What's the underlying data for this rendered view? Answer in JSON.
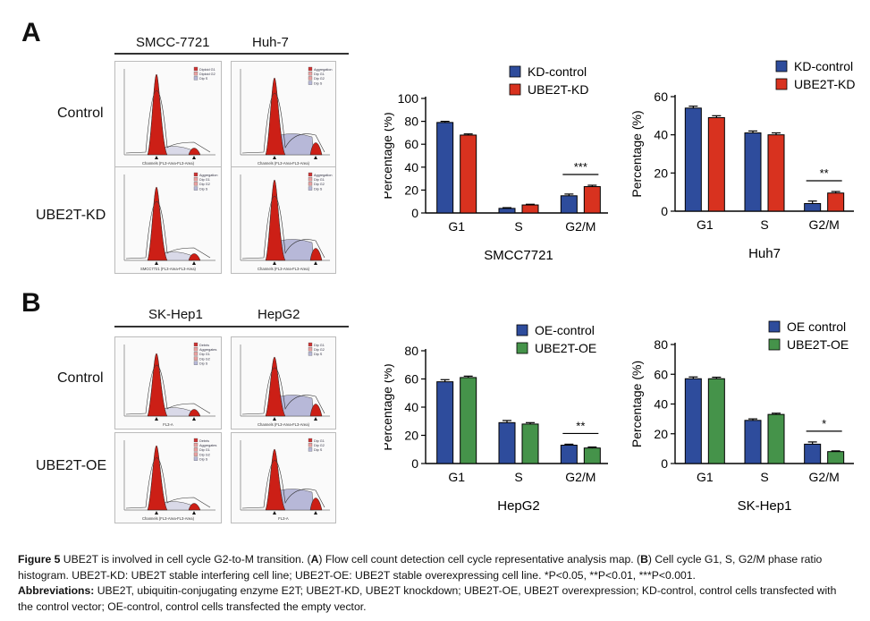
{
  "panels": {
    "a": {
      "letter": "A",
      "cell_lines": [
        "SMCC-7721",
        "Huh-7"
      ],
      "rows": [
        "Control",
        "UBE2T-KD"
      ],
      "histograms": [
        {
          "legend": [
            "Diploid G1",
            "Diploid G2",
            "Dip S"
          ],
          "xaxis": "Channels (FL3-Area-FL3-Area)"
        },
        {
          "legend": [
            "Aggregation",
            "Dip G1",
            "Dip G2",
            "Dip S"
          ],
          "xaxis": "Channels (FL3-Area-FL3-Area)"
        },
        {
          "legend": [
            "Aggregation",
            "Dip G1",
            "Dip G2",
            "Dip S"
          ],
          "xaxis": "SMCC7721 (FL3-Area-FL3-Area)"
        },
        {
          "legend": [
            "Aggregation",
            "Dip G1",
            "Dip G2",
            "Dip S"
          ],
          "xaxis": "Channels (FL3-Area-FL3-Area)"
        }
      ]
    },
    "b": {
      "letter": "B",
      "cell_lines": [
        "SK-Hep1",
        "HepG2"
      ],
      "rows": [
        "Control",
        "UBE2T-OE"
      ],
      "histograms": [
        {
          "legend": [
            "Debris",
            "Aggregates",
            "Dip G1",
            "Dip G2",
            "Dip S"
          ],
          "xaxis": "FL3-A"
        },
        {
          "legend": [
            "Dip G1",
            "Dip G2",
            "Dip S"
          ],
          "xaxis": "Channels (FL3-Area-FL3-Area)"
        },
        {
          "legend": [
            "Debris",
            "Aggregates",
            "Dip G1",
            "Dip G2",
            "Dip S"
          ],
          "xaxis": "Channels (FL3-Area-FL3-Area)"
        },
        {
          "legend": [
            "Dip G1",
            "Dip G2",
            "Dip S"
          ],
          "xaxis": "FL3-A"
        }
      ]
    }
  },
  "colors": {
    "blue": "#2e4c9c",
    "red": "#d8321f",
    "green": "#45934a",
    "facs_red": "#cc1f16"
  },
  "chart_data": [
    {
      "type": "bar",
      "title": "SMCC7721",
      "ylabel": "Percentage (%)",
      "xlabel": "",
      "categories": [
        "G1",
        "S",
        "G2/M"
      ],
      "ylim": [
        0,
        100
      ],
      "yticks": [
        0,
        20,
        40,
        60,
        80,
        100
      ],
      "series": [
        {
          "name": "KD-control",
          "color": "#2e4c9c",
          "values": [
            79,
            4,
            15
          ],
          "errors": [
            1,
            0.6,
            1.5
          ]
        },
        {
          "name": "UBE2T-KD",
          "color": "#d8321f",
          "values": [
            68,
            7,
            23
          ],
          "errors": [
            1,
            0.6,
            1.2
          ]
        }
      ],
      "significance": [
        {
          "category": "G2/M",
          "label": "***"
        }
      ],
      "legend_position": "top-right"
    },
    {
      "type": "bar",
      "title": "Huh7",
      "ylabel": "Percentage (%)",
      "xlabel": "",
      "categories": [
        "G1",
        "S",
        "G2/M"
      ],
      "ylim": [
        0,
        60
      ],
      "yticks": [
        0,
        20,
        40,
        60
      ],
      "series": [
        {
          "name": "KD-control",
          "color": "#2e4c9c",
          "values": [
            54,
            41,
            4
          ],
          "errors": [
            1,
            1,
            1.3
          ]
        },
        {
          "name": "UBE2T-KD",
          "color": "#d8321f",
          "values": [
            49,
            40,
            9.5
          ],
          "errors": [
            1,
            1,
            0.8
          ]
        }
      ],
      "significance": [
        {
          "category": "G2/M",
          "label": "**"
        }
      ],
      "legend_position": "top-right"
    },
    {
      "type": "bar",
      "title": "HepG2",
      "ylabel": "Percentage (%)",
      "xlabel": "",
      "categories": [
        "G1",
        "S",
        "G2/M"
      ],
      "ylim": [
        0,
        80
      ],
      "yticks": [
        0,
        20,
        40,
        60,
        80
      ],
      "series": [
        {
          "name": "OE-control",
          "color": "#2e4c9c",
          "values": [
            58,
            29,
            13
          ],
          "errors": [
            1.5,
            1.5,
            0.7
          ]
        },
        {
          "name": "UBE2T-OE",
          "color": "#45934a",
          "values": [
            61,
            28,
            11
          ],
          "errors": [
            1,
            1,
            0.7
          ]
        }
      ],
      "significance": [
        {
          "category": "G2/M",
          "label": "**"
        }
      ],
      "legend_position": "top-right"
    },
    {
      "type": "bar",
      "title": "SK-Hep1",
      "ylabel": "Percentage (%)",
      "xlabel": "",
      "categories": [
        "G1",
        "S",
        "G2/M"
      ],
      "ylim": [
        0,
        80
      ],
      "yticks": [
        0,
        20,
        40,
        60,
        80
      ],
      "series": [
        {
          "name": "OE control",
          "color": "#2e4c9c",
          "values": [
            57,
            29,
            13
          ],
          "errors": [
            1.2,
            1,
            1.5
          ]
        },
        {
          "name": "UBE2T-OE",
          "color": "#45934a",
          "values": [
            57,
            33,
            8
          ],
          "errors": [
            1,
            0.8,
            0.5
          ]
        }
      ],
      "significance": [
        {
          "category": "G2/M",
          "label": "*"
        }
      ],
      "legend_position": "top-right"
    }
  ],
  "caption": {
    "fig_label": "Figure 5",
    "fig_text_1": " UBE2T is involved in cell cycle G2-to-M transition. (",
    "a_letter": "A",
    "fig_text_2": ") Flow cell count detection cell cycle representative analysis map. (",
    "b_letter": "B",
    "fig_text_3": ") Cell cycle G1, S, G2/M phase ratio histogram. UBE2T-KD: UBE2T stable interfering cell line; UBE2T-OE: UBE2T stable overexpressing cell line. *P<0.05, **P<0.01, ***P<0.001.",
    "abbr_label": "Abbreviations:",
    "abbr_text": " UBE2T, ubiquitin-conjugating enzyme E2T; UBE2T-KD, UBE2T knockdown; UBE2T-OE, UBE2T overexpression; KD-control, control cells transfected with the control vector; OE-control, control cells transfected the empty vector."
  }
}
